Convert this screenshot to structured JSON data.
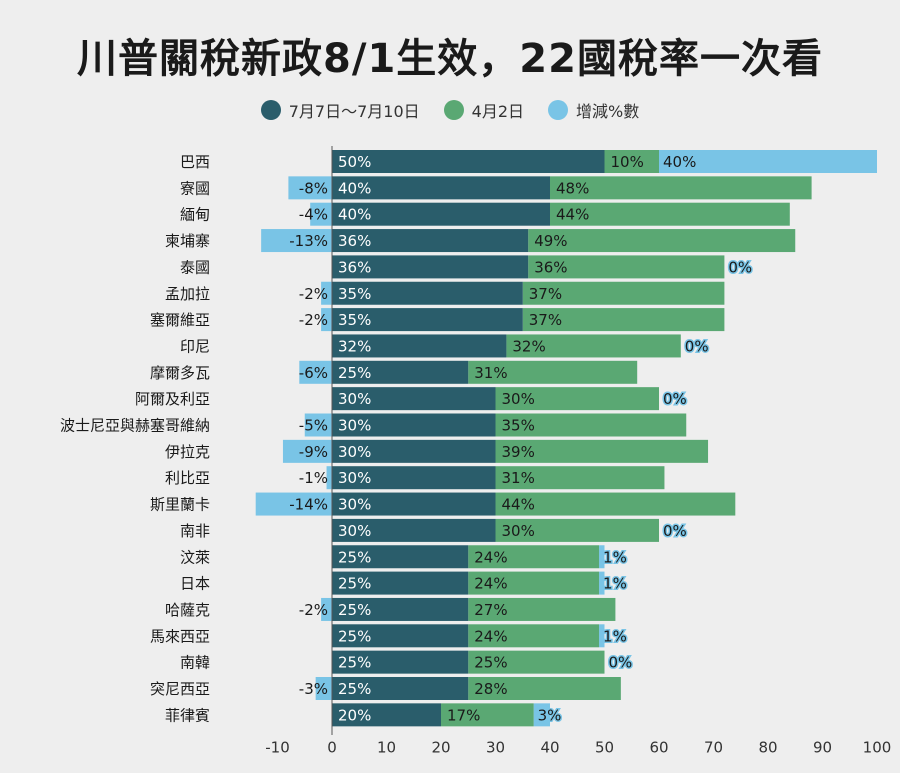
{
  "title": "川普關稅新政8/1生效，22國稅率一次看",
  "colors": {
    "new_rate": "#2a5d6b",
    "old_rate": "#5aa873",
    "change": "#79c4e6"
  },
  "chart_data": {
    "type": "bar",
    "orientation": "horizontal",
    "stacked": true,
    "legend_position": "top",
    "xlim": [
      -10,
      100
    ],
    "x_ticks": [
      -10,
      0,
      10,
      20,
      30,
      40,
      50,
      60,
      70,
      80,
      90,
      100
    ],
    "legend": [
      "7月7日～7月10日",
      "4月2日",
      "增減%數"
    ],
    "categories": [
      "巴西",
      "寮國",
      "緬甸",
      "柬埔寨",
      "泰國",
      "孟加拉",
      "塞爾維亞",
      "印尼",
      "摩爾多瓦",
      "阿爾及利亞",
      "波士尼亞與赫塞哥維納",
      "伊拉克",
      "利比亞",
      "斯里蘭卡",
      "南非",
      "汶萊",
      "日本",
      "哈薩克",
      "馬來西亞",
      "南韓",
      "突尼西亞",
      "菲律賓"
    ],
    "series": [
      {
        "name": "7月7日～7月10日",
        "values": [
          50,
          40,
          40,
          36,
          36,
          35,
          35,
          32,
          25,
          30,
          30,
          30,
          30,
          30,
          30,
          25,
          25,
          25,
          25,
          25,
          25,
          20
        ]
      },
      {
        "name": "4月2日",
        "values": [
          10,
          48,
          44,
          49,
          36,
          37,
          37,
          32,
          31,
          30,
          35,
          39,
          31,
          44,
          30,
          24,
          24,
          27,
          24,
          25,
          28,
          17
        ]
      },
      {
        "name": "增減%數",
        "values": [
          40,
          -8,
          -4,
          -13,
          0,
          -2,
          -2,
          0,
          -6,
          0,
          -5,
          -9,
          -1,
          -14,
          0,
          1,
          1,
          -2,
          1,
          0,
          -3,
          3
        ]
      }
    ]
  }
}
